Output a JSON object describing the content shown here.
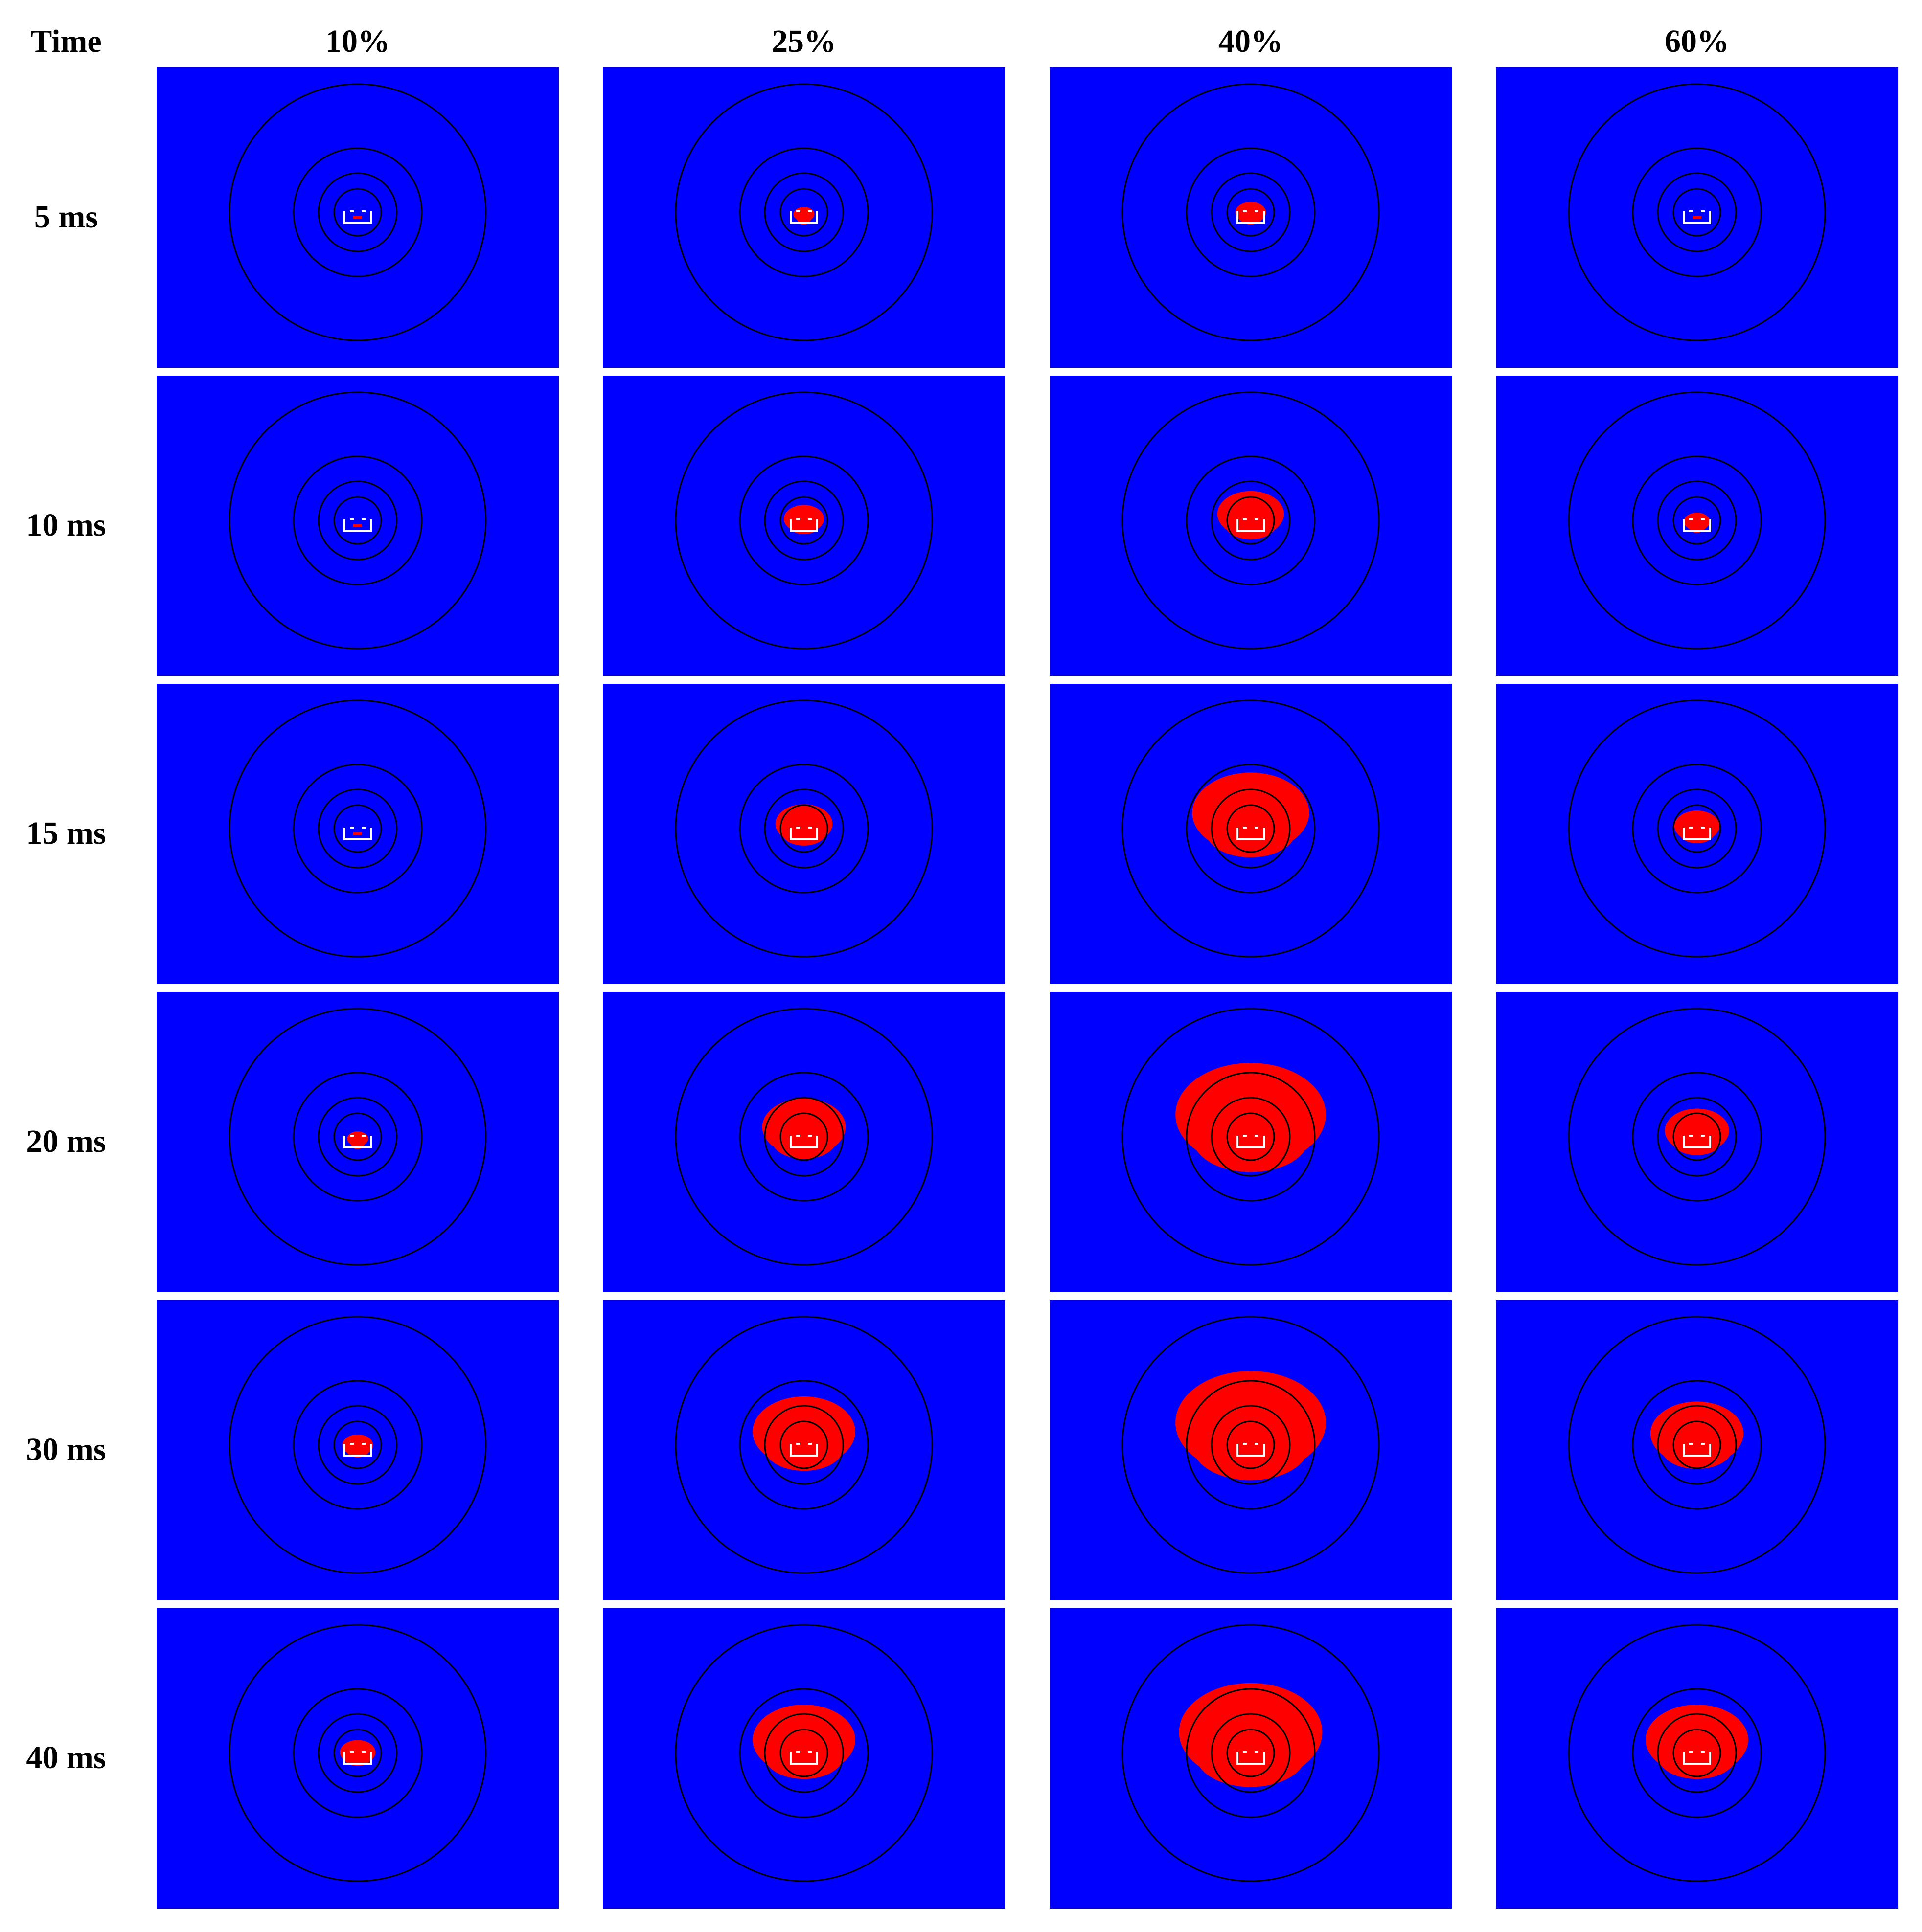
{
  "header": {
    "corner_label": "Time",
    "columns": [
      "10%",
      "25%",
      "40%",
      "60%"
    ]
  },
  "rows": [
    "5 ms",
    "10 ms",
    "15 ms",
    "20 ms",
    "30 ms",
    "40 ms"
  ],
  "colors": {
    "background": "#0000ff",
    "plume": "#ff0000",
    "contour": "#000000",
    "source_outline": "#ffffff"
  },
  "plume_extent": [
    [
      0.0,
      0.15,
      0.35,
      0.0
    ],
    [
      0.0,
      0.55,
      1.1,
      0.25
    ],
    [
      0.0,
      0.9,
      2.15,
      0.65
    ],
    [
      0.15,
      1.45,
      2.85,
      1.05
    ],
    [
      0.35,
      1.85,
      2.85,
      1.65
    ],
    [
      0.45,
      1.85,
      2.7,
      1.85
    ]
  ]
}
